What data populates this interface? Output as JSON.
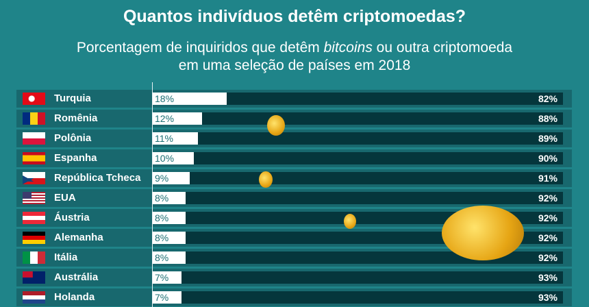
{
  "chart_data": {
    "type": "bar",
    "orientation": "horizontal",
    "stacked": true,
    "title": "Quantos indivíduos detêm criptomoedas?",
    "subtitle_parts": [
      "Porcentagem de inquiridos que detêm ",
      "bitcoins",
      " ou outra criptomoeda",
      "em uma seleção de países em 2018"
    ],
    "categories": [
      "Turquia",
      "Romênia",
      "Polônia",
      "Espanha",
      "República Tcheca",
      "EUA",
      "Áustria",
      "Alemanha",
      "Itália",
      "Austrália",
      "Holanda"
    ],
    "flags": [
      "turkey",
      "romania",
      "poland",
      "spain",
      "czech",
      "usa",
      "austria",
      "germany",
      "italy",
      "australia",
      "netherlands"
    ],
    "series": [
      {
        "values": [
          18,
          12,
          11,
          10,
          9,
          8,
          8,
          8,
          8,
          7,
          7
        ],
        "color": "#ffffff"
      },
      {
        "values": [
          82,
          88,
          89,
          90,
          91,
          92,
          92,
          92,
          92,
          93,
          93
        ],
        "color": "#05363c"
      }
    ],
    "xlim": [
      0,
      100
    ],
    "grid": false,
    "legend": "none"
  },
  "colors": {
    "background": "#1f8489",
    "row": "#18686e",
    "no_bar": "#05363c",
    "yes_bar": "#ffffff"
  }
}
